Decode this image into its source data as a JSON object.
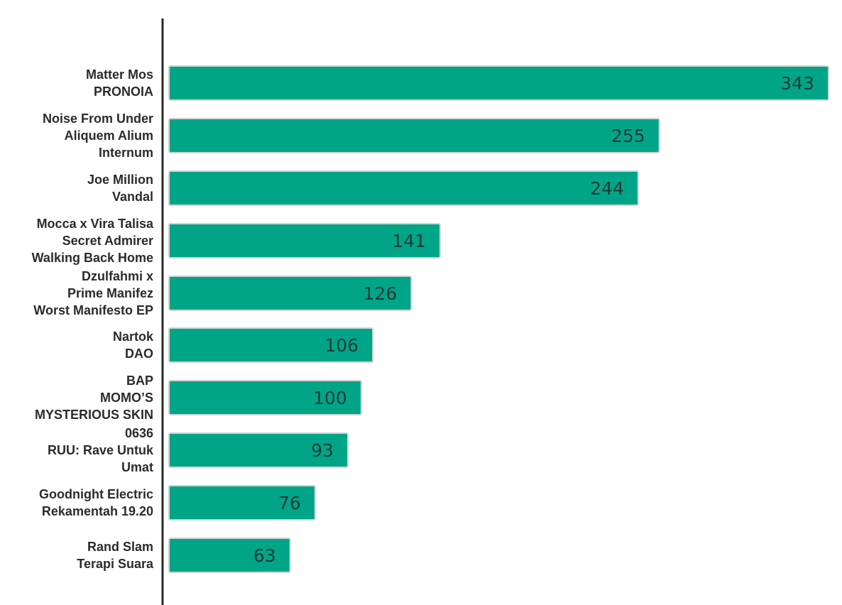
{
  "colors": {
    "bar": "#00a588",
    "bar_edge": "#d2d2d2",
    "axis": "#2b2b2b",
    "label": "#2b2b2b",
    "value_text": "#1f3a34"
  },
  "chart_data": {
    "type": "bar",
    "orientation": "horizontal",
    "title": "",
    "xlabel": "",
    "ylabel": "",
    "grid": false,
    "xlim": [
      0,
      343
    ],
    "categories": [
      [
        "Matter Mos",
        "PRONOIA"
      ],
      [
        "Noise From Under",
        "Aliquem Alium",
        "Internum"
      ],
      [
        "Joe Million",
        "Vandal"
      ],
      [
        "Mocca x Vira Talisa",
        "Secret Admirer",
        "Walking Back Home"
      ],
      [
        "Dzulfahmi x",
        "Prime Manifez",
        "Worst Manifesto EP"
      ],
      [
        "Nartok",
        "DAO"
      ],
      [
        "BAP",
        "MOMO’S",
        "MYSTERIOUS SKIN"
      ],
      [
        "0636",
        "RUU: Rave Untuk",
        "Umat"
      ],
      [
        "Goodnight Electric",
        "Rekamentah 19.20"
      ],
      [
        "Rand Slam",
        "Terapi Suara"
      ]
    ],
    "values": [
      343,
      255,
      244,
      141,
      126,
      106,
      100,
      93,
      76,
      63
    ]
  }
}
